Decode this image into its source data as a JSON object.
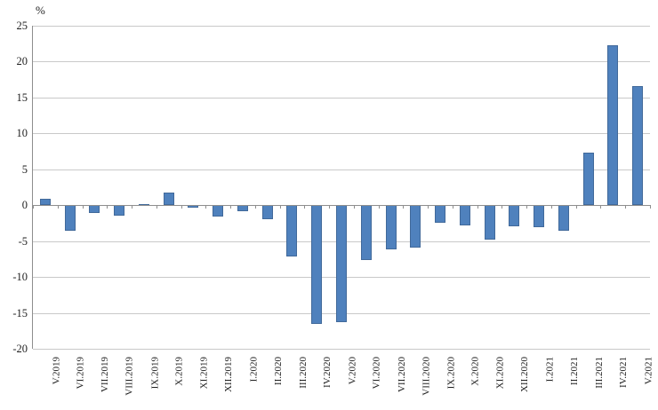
{
  "chart_data": {
    "type": "bar",
    "title": "",
    "xlabel": "",
    "ylabel": "%",
    "categories": [
      "V.2019",
      "VI.2019",
      "VII.2019",
      "VIII.2019",
      "IX.2019",
      "X.2019",
      "XI.2019",
      "XII.2019",
      "I.2020",
      "II.2020",
      "III.2020",
      "IV.2020",
      "V.2020",
      "VI.2020",
      "VII.2020",
      "VIII.2020",
      "IX.2020",
      "X.2020",
      "XI.2020",
      "XII.2020",
      "I.2021",
      "II.2021",
      "III.2021",
      "IV.2021",
      "V.2021"
    ],
    "values": [
      0.9,
      -3.5,
      -1.1,
      -1.4,
      0.2,
      1.7,
      -0.4,
      -1.6,
      -0.8,
      -1.9,
      -7.2,
      -16.5,
      -16.3,
      -7.6,
      -6.1,
      -5.9,
      -2.5,
      -2.8,
      -4.8,
      -3.0,
      -3.1,
      -3.5,
      7.3,
      22.3,
      16.6
    ],
    "ylim": [
      -20,
      25
    ],
    "yticks": [
      25,
      20,
      15,
      10,
      5,
      0,
      -5,
      -10,
      -15,
      -20
    ],
    "grid": true,
    "legend_position": "none",
    "bar_color": "#4f81bd",
    "gridline_color": "#c9c9c9",
    "axis_color": "#8e8e8e"
  }
}
